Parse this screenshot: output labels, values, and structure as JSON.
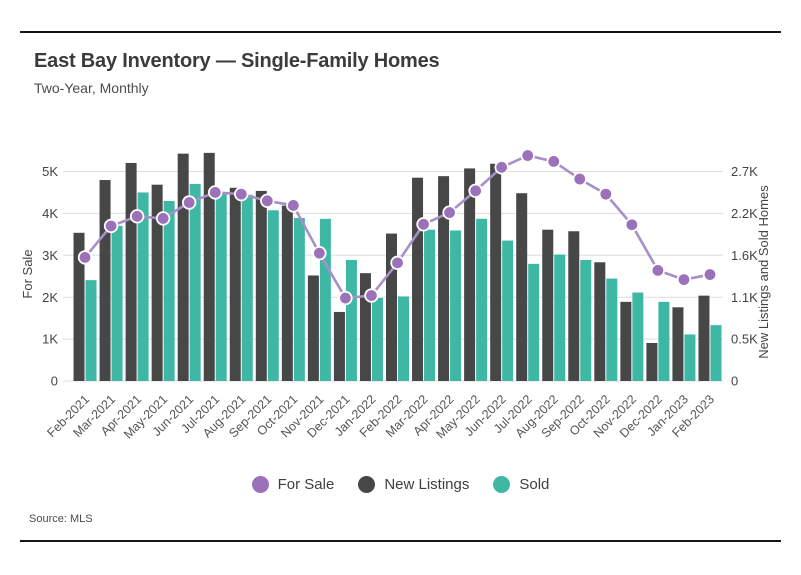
{
  "chart_data": {
    "type": "combo-bar-line",
    "title": "East Bay Inventory — Single-Family Homes",
    "subtitle": "Two-Year, Monthly",
    "source": "Source: MLS",
    "categories": [
      "Feb-2021",
      "Mar-2021",
      "Apr-2021",
      "May-2021",
      "Jun-2021",
      "Jul-2021",
      "Aug-2021",
      "Sep-2021",
      "Oct-2021",
      "Nov-2021",
      "Dec-2021",
      "Jan-2022",
      "Feb-2022",
      "Mar-2022",
      "Apr-2022",
      "May-2022",
      "Jun-2022",
      "Jul-2022",
      "Aug-2022",
      "Sep-2022",
      "Oct-2022",
      "Nov-2022",
      "Dec-2022",
      "Jan-2023",
      "Feb-2023"
    ],
    "series": [
      {
        "name": "For Sale",
        "type": "line",
        "axis": "left",
        "color": "#9B72B9",
        "line_color": "#A78FC9",
        "values": [
          2950,
          3700,
          3930,
          3880,
          4260,
          4500,
          4460,
          4300,
          4190,
          3050,
          1980,
          2040,
          2820,
          3740,
          4020,
          4540,
          5100,
          5380,
          5240,
          4820,
          4460,
          3730,
          2640,
          2420,
          2540
        ]
      },
      {
        "name": "New Listings",
        "type": "bar",
        "axis": "right",
        "color": "#474747",
        "values": [
          1910,
          2590,
          2810,
          2530,
          2930,
          2940,
          2490,
          2450,
          2260,
          1360,
          890,
          1390,
          1900,
          2620,
          2640,
          2740,
          2800,
          2420,
          1950,
          1930,
          1530,
          1020,
          490,
          950,
          1100
        ]
      },
      {
        "name": "Sold",
        "type": "bar",
        "axis": "right",
        "color": "#3EB8A4",
        "values": [
          1300,
          2000,
          2430,
          2320,
          2540,
          2430,
          2400,
          2200,
          2100,
          2090,
          1560,
          1070,
          1090,
          1950,
          1940,
          2090,
          1810,
          1510,
          1630,
          1560,
          1320,
          1140,
          1020,
          600,
          720
        ]
      }
    ],
    "left_axis": {
      "label": "For Sale",
      "max": 5000,
      "ticks": [
        "0",
        "1K",
        "2K",
        "3K",
        "4K",
        "5K"
      ]
    },
    "right_axis": {
      "label": "New Listings and Sold Homes",
      "max": 2700,
      "ticks": [
        "0",
        "0.5K",
        "1.1K",
        "1.6K",
        "2.2K",
        "2.7K"
      ]
    },
    "grid": true,
    "legend_position": "bottom"
  }
}
